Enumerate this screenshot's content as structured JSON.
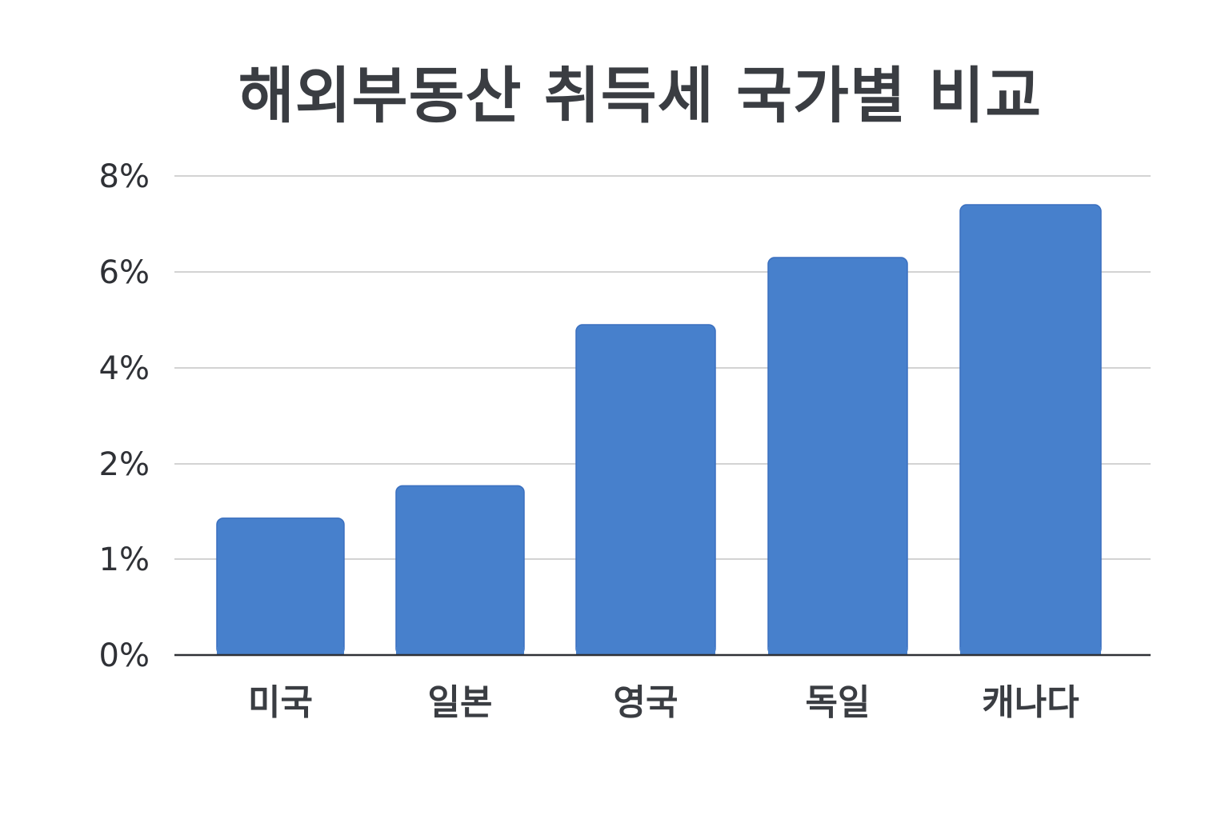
{
  "chart_data": {
    "type": "bar",
    "title": "해외부동산 취득세 국가별 비교",
    "categories": [
      "미국",
      "일본",
      "영국",
      "독일",
      "캐나다"
    ],
    "values": [
      1.43,
      1.77,
      4.9,
      6.3,
      7.4
    ],
    "yticks": [
      {
        "label": "0%",
        "value": 0
      },
      {
        "label": "1%",
        "value": 1
      },
      {
        "label": "2%",
        "value": 2
      },
      {
        "label": "4%",
        "value": 4
      },
      {
        "label": "6%",
        "value": 6
      },
      {
        "label": "8%",
        "value": 8
      }
    ],
    "grid": true,
    "bar_color": "#4780cc",
    "xlabel": "",
    "ylabel": ""
  }
}
